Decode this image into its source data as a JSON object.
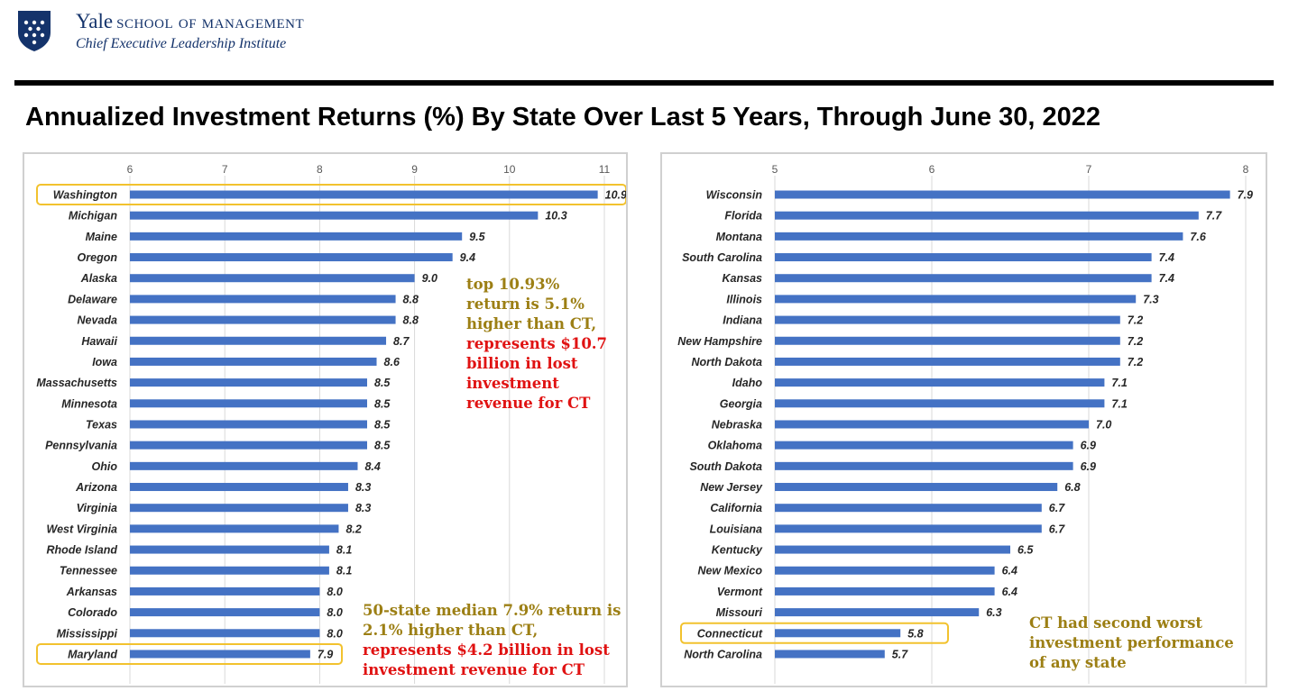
{
  "header": {
    "brand_yale": "Yale",
    "brand_school": "school of management",
    "brand_subtitle": "Chief Executive Leadership Institute",
    "logo_icon": "yale-shield-icon"
  },
  "title": "Annualized Investment Returns (%) By State Over Last 5 Years, Through June 30, 2022",
  "colors": {
    "bar": "#4472c4",
    "highlight_box": "#f2c22e",
    "gold_text": "#9c7f14",
    "red_text": "#e01212",
    "grid": "#d9d9d9"
  },
  "chart_data": [
    {
      "type": "bar",
      "orientation": "horizontal",
      "xlim": [
        6,
        11
      ],
      "ticks": [
        "6",
        "7",
        "8",
        "9",
        "10",
        "11"
      ],
      "grid": true,
      "categories": [
        "Washington",
        "Michigan",
        "Maine",
        "Oregon",
        "Alaska",
        "Delaware",
        "Nevada",
        "Hawaii",
        "Iowa",
        "Massachusetts",
        "Minnesota",
        "Texas",
        "Pennsylvania",
        "Ohio",
        "Arizona",
        "Virginia",
        "West Virginia",
        "Rhode Island",
        "Tennessee",
        "Arkansas",
        "Colorado",
        "Mississippi",
        "Maryland"
      ],
      "values": [
        10.93,
        10.3,
        9.5,
        9.4,
        9.0,
        8.8,
        8.8,
        8.7,
        8.6,
        8.5,
        8.5,
        8.5,
        8.5,
        8.4,
        8.3,
        8.3,
        8.2,
        8.1,
        8.1,
        8.0,
        8.0,
        8.0,
        7.9
      ],
      "labels": [
        "10.9",
        "10.3",
        "9.5",
        "9.4",
        "9.0",
        "8.8",
        "8.8",
        "8.7",
        "8.6",
        "8.5",
        "8.5",
        "8.5",
        "8.5",
        "8.4",
        "8.3",
        "8.3",
        "8.2",
        "8.1",
        "8.1",
        "8.0",
        "8.0",
        "8.0",
        "7.9"
      ],
      "highlighted": [
        "Washington",
        "Maryland"
      ]
    },
    {
      "type": "bar",
      "orientation": "horizontal",
      "xlim": [
        5,
        8
      ],
      "ticks": [
        "5",
        "6",
        "7",
        "8"
      ],
      "grid": true,
      "categories": [
        "Wisconsin",
        "Florida",
        "Montana",
        "South Carolina",
        "Kansas",
        "Illinois",
        "Indiana",
        "New Hampshire",
        "North Dakota",
        "Idaho",
        "Georgia",
        "Nebraska",
        "Oklahoma",
        "South Dakota",
        "New Jersey",
        "California",
        "Louisiana",
        "Kentucky",
        "New Mexico",
        "Vermont",
        "Missouri",
        "Connecticut",
        "North Carolina"
      ],
      "values": [
        7.9,
        7.7,
        7.6,
        7.4,
        7.4,
        7.3,
        7.2,
        7.2,
        7.2,
        7.1,
        7.1,
        7.0,
        6.9,
        6.9,
        6.8,
        6.7,
        6.7,
        6.5,
        6.4,
        6.4,
        6.3,
        5.8,
        5.7
      ],
      "labels": [
        "7.9",
        "7.7",
        "7.6",
        "7.4",
        "7.4",
        "7.3",
        "7.2",
        "7.2",
        "7.2",
        "7.1",
        "7.1",
        "7.0",
        "6.9",
        "6.9",
        "6.8",
        "6.7",
        "6.7",
        "6.5",
        "6.4",
        "6.4",
        "6.3",
        "5.8",
        "5.7"
      ],
      "highlighted": [
        "Connecticut"
      ]
    }
  ],
  "annotations": {
    "top": {
      "gold_lines": [
        "top 10.93%",
        "return is 5.1%",
        "higher than CT,"
      ],
      "red_lines": [
        "represents $10.7",
        "billion in lost",
        "investment",
        "revenue for CT"
      ]
    },
    "median": {
      "gold_lines": [
        "50-state median 7.9% return is",
        "2.1% higher than CT,"
      ],
      "red_lines": [
        "represents $4.2 billion in lost",
        "investment revenue for CT"
      ]
    },
    "ct": {
      "gold_lines": [
        "CT had second worst",
        "investment performance",
        "of any state"
      ]
    }
  }
}
